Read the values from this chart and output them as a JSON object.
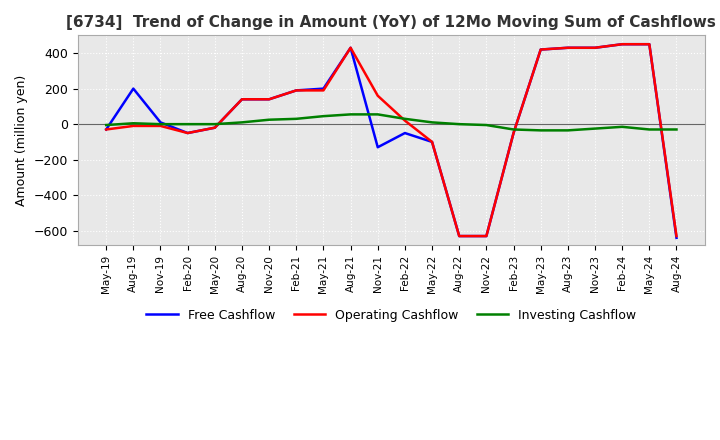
{
  "title": "[6734]  Trend of Change in Amount (YoY) of 12Mo Moving Sum of Cashflows",
  "ylabel": "Amount (million yen)",
  "ylim": [
    -680,
    500
  ],
  "yticks": [
    -600,
    -400,
    -200,
    0,
    200,
    400
  ],
  "bg_color": "#ffffff",
  "plot_bg": "#e8e8e8",
  "grid_color": "#ffffff",
  "legend": [
    "Operating Cashflow",
    "Investing Cashflow",
    "Free Cashflow"
  ],
  "legend_colors": [
    "#ff0000",
    "#008000",
    "#0000ff"
  ],
  "x_labels": [
    "May-19",
    "Aug-19",
    "Nov-19",
    "Feb-20",
    "May-20",
    "Aug-20",
    "Nov-20",
    "Feb-21",
    "May-21",
    "Aug-21",
    "Nov-21",
    "Feb-22",
    "May-22",
    "Aug-22",
    "Nov-22",
    "Feb-23",
    "May-23",
    "Aug-23",
    "Nov-23",
    "Feb-24",
    "May-24",
    "Aug-24"
  ],
  "operating": [
    -30,
    -10,
    -10,
    -50,
    -20,
    140,
    140,
    190,
    190,
    430,
    160,
    20,
    -100,
    -630,
    -630,
    -50,
    420,
    430,
    430,
    450,
    450,
    -630
  ],
  "investing": [
    -5,
    5,
    0,
    0,
    0,
    10,
    25,
    30,
    45,
    55,
    55,
    30,
    10,
    0,
    -5,
    -30,
    -35,
    -35,
    -25,
    -15,
    -30,
    -30
  ],
  "free": [
    -30,
    200,
    10,
    -50,
    -20,
    140,
    140,
    190,
    200,
    430,
    -130,
    -50,
    -100,
    -630,
    -630,
    -50,
    420,
    430,
    430,
    450,
    450,
    -640
  ]
}
